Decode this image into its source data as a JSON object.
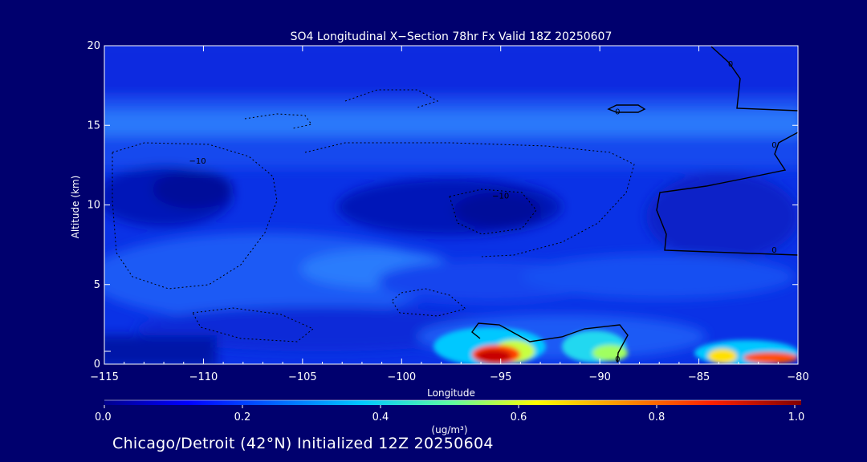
{
  "chart_data": {
    "type": "heatmap",
    "title": "SO4 Longitudinal X−Section 78hr  Fx Valid 18Z 20250607",
    "xlabel": "Longitude",
    "ylabel": "Altitude (km)",
    "xlim": [
      -115,
      -80
    ],
    "ylim": [
      0,
      20
    ],
    "x_ticks": [
      -115,
      -110,
      -105,
      -100,
      -95,
      -90,
      -85,
      -80
    ],
    "x_tick_labels": [
      "−115",
      "−110",
      "−105",
      "−100",
      "−95",
      "−90",
      "−85",
      "−80"
    ],
    "y_ticks": [
      0,
      5,
      10,
      15,
      20
    ],
    "y_tick_labels": [
      "0",
      "5",
      "10",
      "15",
      "20"
    ],
    "colorbar": {
      "label": "(ug/m³)",
      "ticks": [
        0.0,
        0.2,
        0.4,
        0.6,
        0.8,
        1.0
      ],
      "tick_labels": [
        "0.0",
        "0.2",
        "0.4",
        "0.6",
        "0.8",
        "1.0"
      ],
      "range": [
        0,
        1
      ]
    },
    "field_description_regions": [
      {
        "lon": [
          -115,
          -80
        ],
        "alt": [
          16.5,
          20
        ],
        "value": 0.12
      },
      {
        "lon": [
          -115,
          -80
        ],
        "alt": [
          14,
          16
        ],
        "value": 0.2
      },
      {
        "lon": [
          -113,
          -104
        ],
        "alt": [
          8,
          13
        ],
        "value": 0.04
      },
      {
        "lon": [
          -101,
          -93
        ],
        "alt": [
          8,
          11
        ],
        "value": 0.05
      },
      {
        "lon": [
          -114,
          -103
        ],
        "alt": [
          3,
          7
        ],
        "value": 0.18
      },
      {
        "lon": [
          -96,
          -94
        ],
        "alt": [
          0,
          1.2
        ],
        "value": 1.0
      },
      {
        "lon": [
          -97.5,
          -93
        ],
        "alt": [
          0,
          2.2
        ],
        "value": 0.45
      },
      {
        "lon": [
          -92,
          -89.5
        ],
        "alt": [
          0,
          1.5
        ],
        "value": 0.35
      },
      {
        "lon": [
          -84,
          -80
        ],
        "alt": [
          0,
          1.2
        ],
        "value": 0.6
      }
    ],
    "contour_labels": [
      {
        "text": "−10",
        "lon": -110.3,
        "alt": 12.8
      },
      {
        "text": "−10",
        "lon": -95.0,
        "alt": 10.6
      },
      {
        "text": "0",
        "lon": -89.1,
        "alt": 15.9
      },
      {
        "text": "0",
        "lon": -83.4,
        "alt": 18.9
      },
      {
        "text": "0",
        "lon": -81.2,
        "alt": 13.8
      },
      {
        "text": "0",
        "lon": -81.2,
        "alt": 7.2
      },
      {
        "text": "0",
        "lon": -89.1,
        "alt": 0.35
      }
    ]
  },
  "footer": {
    "caption": "Chicago/Detroit (42°N) Initialized 12Z 20250604"
  }
}
